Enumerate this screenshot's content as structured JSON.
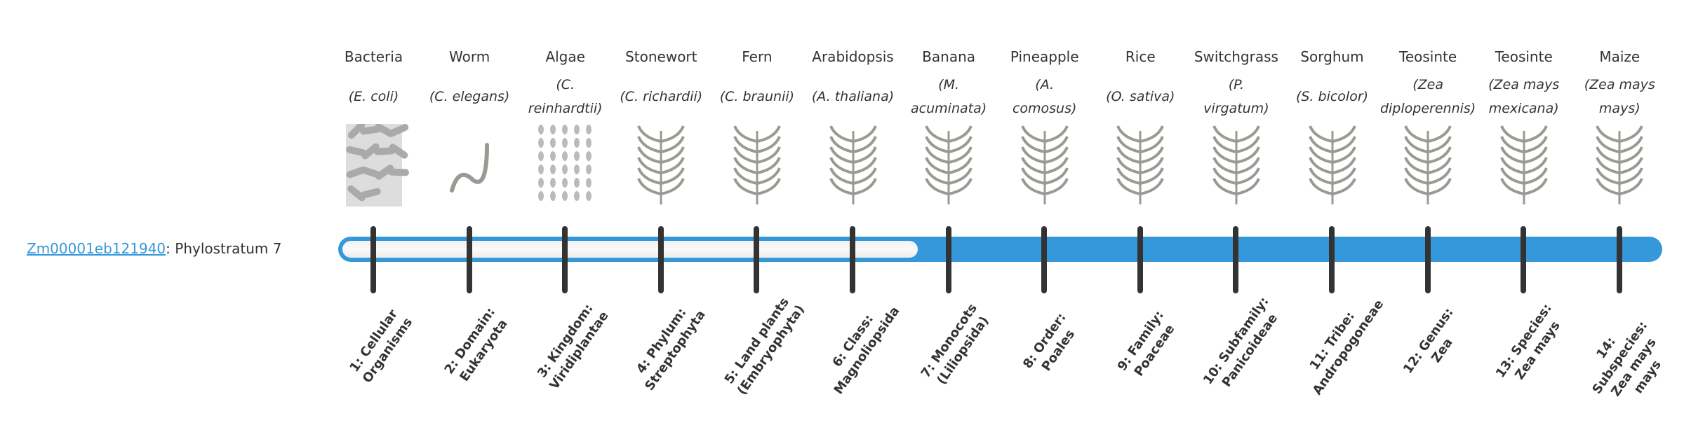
{
  "gene": {
    "id": "Zm00001eb121940",
    "separator": ":",
    "phylostratum_label": "Phylostratum 7"
  },
  "progress": {
    "phylostratum": 7,
    "total": 14,
    "fill_color": "#3498db",
    "empty_color": "#f5f5f5"
  },
  "strata": [
    {
      "common": "Bacteria",
      "sci": [
        "(E. coli)"
      ],
      "rank": "1: Cellular Organisms",
      "icon": "bacteria-image"
    },
    {
      "common": "Worm",
      "sci": [
        "(C. elegans)"
      ],
      "rank": "2: Domain: Eukaryota",
      "icon": "worm-image"
    },
    {
      "common": "Algae",
      "sci": [
        "(C.",
        "reinhardtii)"
      ],
      "rank": "3: Kingdom: Viridiplantae",
      "icon": "algae-image"
    },
    {
      "common": "Stonewort",
      "sci": [
        "(C. richardii)"
      ],
      "rank": "4: Phylum: Streptophyta",
      "icon": "stonewort-image"
    },
    {
      "common": "Fern",
      "sci": [
        "(C. braunii)"
      ],
      "rank": "5: Land plants (Embryophyta)",
      "icon": "fern-image"
    },
    {
      "common": "Arabidopsis",
      "sci": [
        "(A. thaliana)"
      ],
      "rank": "6: Class: Magnoliopsida",
      "icon": "arabidopsis-image"
    },
    {
      "common": "Banana",
      "sci": [
        "(M.",
        "acuminata)"
      ],
      "rank": "7: Monocots (Liliopsida)",
      "icon": "banana-image"
    },
    {
      "common": "Pineapple",
      "sci": [
        "(A.",
        "comosus)"
      ],
      "rank": "8: Order: Poales",
      "icon": "pineapple-image"
    },
    {
      "common": "Rice",
      "sci": [
        "(O. sativa)"
      ],
      "rank": "9: Family: Poaceae",
      "icon": "rice-image"
    },
    {
      "common": "Switchgrass",
      "sci": [
        "(P.",
        "virgatum)"
      ],
      "rank": "10: Subfamily: Panicoideae",
      "icon": "switchgrass-image"
    },
    {
      "common": "Sorghum",
      "sci": [
        "(S. bicolor)"
      ],
      "rank": "11: Tribe: Andropogoneae",
      "icon": "sorghum-image"
    },
    {
      "common": "Teosinte",
      "sci": [
        "(Zea",
        "diploperennis)"
      ],
      "rank": "12: Genus: Zea",
      "icon": "teosinte-image"
    },
    {
      "common": "Teosinte",
      "sci": [
        "(Zea mays",
        "mexicana)"
      ],
      "rank": "13: Species: Zea mays",
      "icon": "teosinte-image"
    },
    {
      "common": "Maize",
      "sci": [
        "(Zea mays",
        "mays)"
      ],
      "rank": "14: Subspecies: Zea mays mays",
      "icon": "maize-image"
    }
  ]
}
